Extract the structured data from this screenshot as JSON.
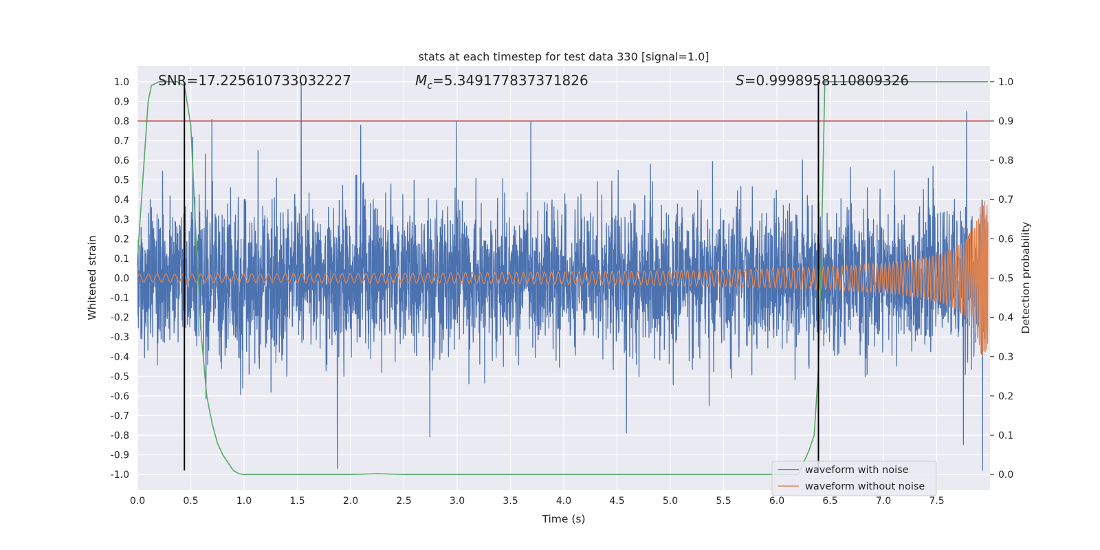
{
  "chart_data": {
    "type": "line",
    "title": "stats at each timestep for test data 330 [signal=1.0]",
    "xlabel": "Time (s)",
    "ylabel": "Whitened strain",
    "y2label": "Detection probability",
    "xlim": [
      0.0,
      8.0
    ],
    "ylim": [
      -1.08,
      1.08
    ],
    "y2lim": [
      -0.04,
      1.04
    ],
    "xticks": [
      "0.0",
      "0.5",
      "1.0",
      "1.5",
      "2.0",
      "2.5",
      "3.0",
      "3.5",
      "4.0",
      "4.5",
      "5.0",
      "5.5",
      "6.0",
      "6.5",
      "7.0",
      "7.5"
    ],
    "yticks": [
      "1.0",
      "0.9",
      "0.8",
      "0.7",
      "0.6",
      "0.5",
      "0.4",
      "0.3",
      "0.2",
      "0.1",
      "0.0",
      "-0.1",
      "-0.2",
      "-0.3",
      "-0.4",
      "-0.5",
      "-0.6",
      "-0.7",
      "-0.8",
      "-0.9",
      "-1.0"
    ],
    "y2ticks": [
      "1.0",
      "0.9",
      "0.8",
      "0.7",
      "0.6",
      "0.5",
      "0.4",
      "0.3",
      "0.2",
      "0.1",
      "0.0"
    ],
    "grid": true,
    "legend_position": "lower-right",
    "annotations": {
      "snr": "SNR=17.225610733032227",
      "mc_symbol": "M",
      "mc_subscript": "c",
      "mc_value": "=5.349177837371826",
      "s_symbol": "S",
      "s_value": "=0.9998958110809326"
    },
    "threshold_line": {
      "y": 0.8,
      "color": "#c44e52"
    },
    "vertical_lines": [
      {
        "x": 0.44,
        "ymin": -0.98,
        "ymax": 1.0
      },
      {
        "x": 6.39,
        "ymin": -0.98,
        "ymax": 1.0
      }
    ],
    "series": [
      {
        "name": "waveform with noise",
        "color": "#4c72b0",
        "axis": "left",
        "kind": "noise",
        "envelope_typical": [
          -0.45,
          0.42
        ],
        "extremes": [
          {
            "x": 0.44,
            "y": 0.6
          },
          {
            "x": 0.52,
            "y": 0.72
          },
          {
            "x": 0.7,
            "y": 0.81
          },
          {
            "x": 1.54,
            "y": 1.0
          },
          {
            "x": 2.1,
            "y": 0.78
          },
          {
            "x": 3.0,
            "y": 0.8
          },
          {
            "x": 3.7,
            "y": 0.8
          },
          {
            "x": 7.8,
            "y": 0.85
          },
          {
            "x": 0.44,
            "y": -0.74
          },
          {
            "x": 1.88,
            "y": -0.97
          },
          {
            "x": 2.75,
            "y": -0.81
          },
          {
            "x": 4.6,
            "y": -0.79
          },
          {
            "x": 7.77,
            "y": -0.85
          },
          {
            "x": 7.95,
            "y": -0.98
          }
        ]
      },
      {
        "name": "waveform without noise",
        "color": "#dd8452",
        "axis": "left",
        "kind": "chirp",
        "amplitude_start": 0.02,
        "amplitude_end": 0.4,
        "t_end": 7.98
      },
      {
        "name": "",
        "color": "#55a868",
        "axis": "right",
        "kind": "line",
        "x": [
          0.0,
          0.05,
          0.1,
          0.13,
          0.2,
          0.3,
          0.37,
          0.44,
          0.5,
          0.55,
          0.6,
          0.65,
          0.7,
          0.75,
          0.8,
          0.85,
          0.9,
          0.95,
          1.0,
          1.5,
          2.0,
          2.25,
          2.5,
          3.0,
          4.0,
          5.0,
          6.0,
          6.2,
          6.3,
          6.35,
          6.39,
          6.42,
          6.45,
          7.0,
          7.5,
          7.98
        ],
        "y": [
          0.55,
          0.75,
          0.95,
          0.99,
          1.0,
          1.0,
          1.0,
          0.99,
          0.89,
          0.6,
          0.35,
          0.2,
          0.13,
          0.08,
          0.05,
          0.03,
          0.01,
          0.002,
          0.0,
          0.0,
          0.0,
          0.002,
          0.0,
          0.0,
          0.0,
          0.0,
          0.0,
          0.0,
          0.06,
          0.1,
          0.27,
          0.6,
          1.0,
          1.0,
          1.0,
          1.0
        ]
      }
    ]
  }
}
